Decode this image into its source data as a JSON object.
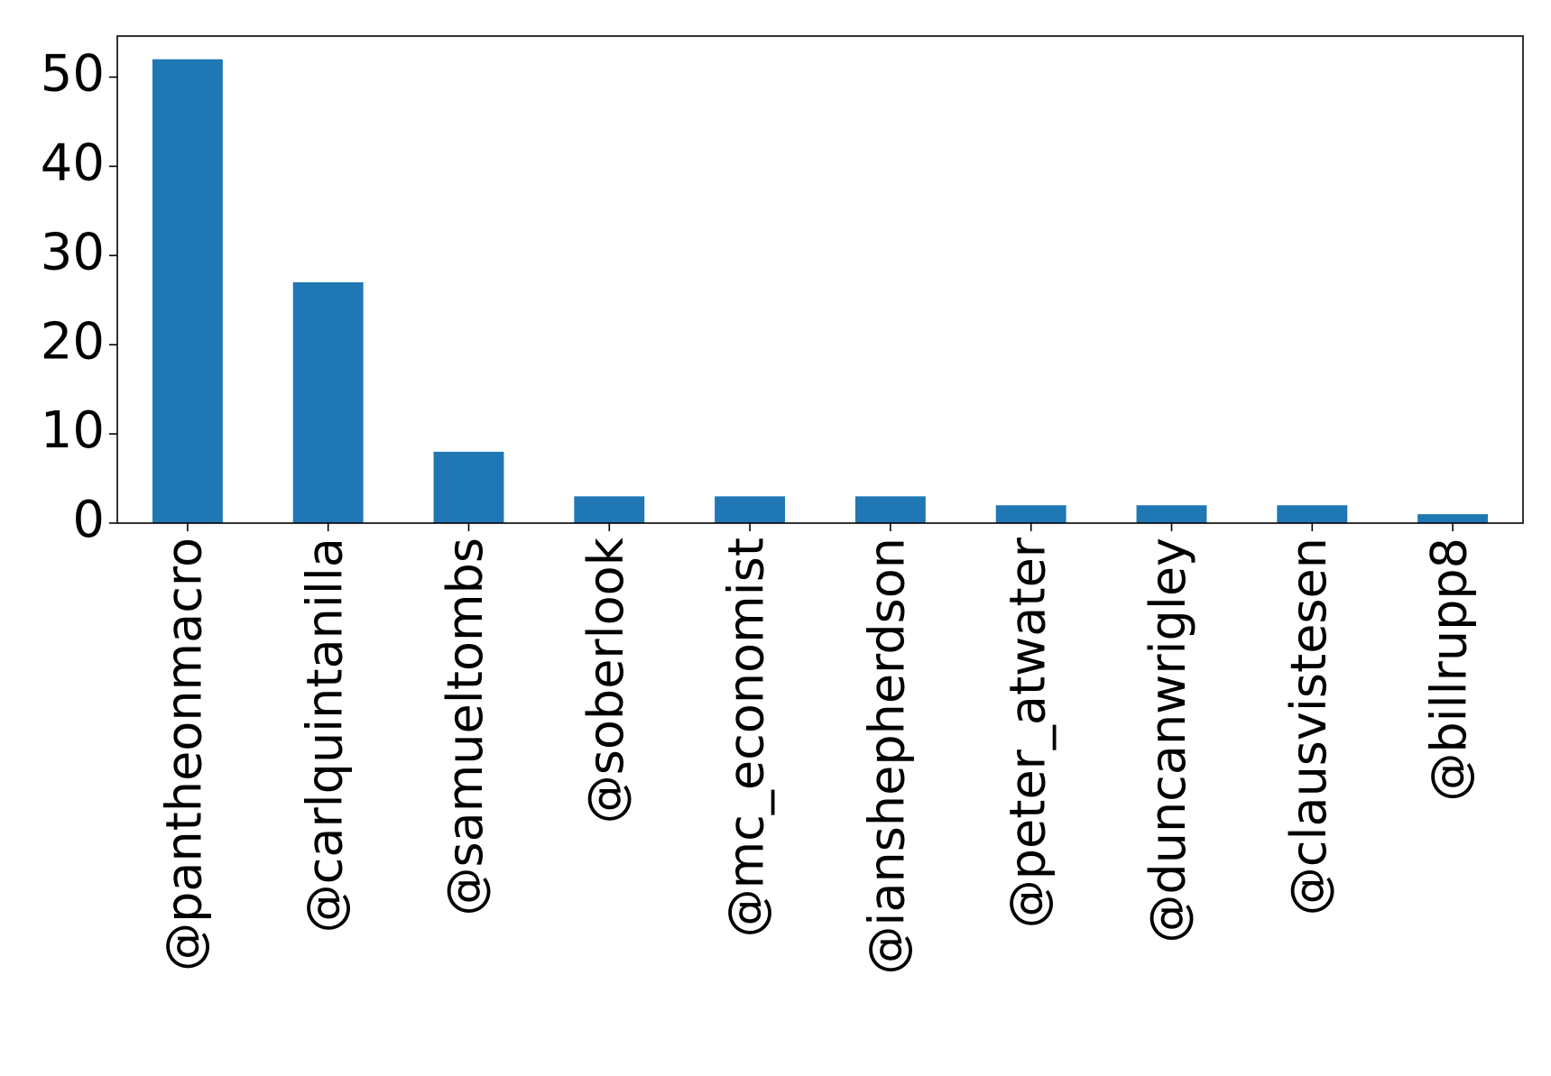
{
  "chart_data": {
    "type": "bar",
    "categories": [
      "@pantheonmacro",
      "@carlquintanilla",
      "@samueltombs",
      "@soberlook",
      "@mc_economist",
      "@ianshepherdson",
      "@peter_atwater",
      "@duncanwrigley",
      "@clausvistesen",
      "@billrupp8"
    ],
    "values": [
      52,
      27,
      8,
      3,
      3,
      3,
      2,
      2,
      2,
      1
    ],
    "title": "",
    "xlabel": "",
    "ylabel": "",
    "ylim": [
      0,
      54.6
    ],
    "yticks": [
      0,
      10,
      20,
      30,
      40,
      50
    ],
    "grid": false,
    "bar_color": "#1f77b4",
    "axis_color": "#000000"
  }
}
